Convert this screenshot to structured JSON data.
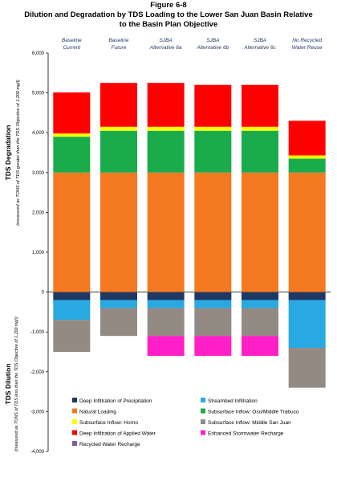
{
  "header": {
    "figure_label": "Figure 6-8",
    "title_line1": "Dilution and Degradation by TDS Loading to the Lower San Juan Basin Relative",
    "title_line2": "to the  Basin Plan Objective"
  },
  "chart_data": {
    "type": "bar",
    "stacked": true,
    "categories": [
      [
        "Baseline",
        "Current"
      ],
      [
        "Baseline",
        "Future"
      ],
      [
        "SJBA",
        "Alternative 6a"
      ],
      [
        "SJBA",
        "Alternative 6b"
      ],
      [
        "SJBA",
        "Alternative 6c"
      ],
      [
        "No Recycled",
        "Water Reuse"
      ]
    ],
    "ylim": [
      -4000,
      6000
    ],
    "yticks": [
      -4000,
      -3000,
      -2000,
      -1000,
      0,
      1000,
      2000,
      3000,
      4000,
      5000,
      6000
    ],
    "ytick_labels": [
      "-4,000",
      "-3,000",
      "-2,000",
      "-1,000",
      "0",
      "1,000",
      "2,000",
      "3,000",
      "4,000",
      "5,000",
      "6,000"
    ],
    "ylabel_top": "TDS Degradation",
    "ylabel_top_sub": "(measured as TONS of TDS greater than the TDS Objective of 1,200 mg/l)",
    "ylabel_bottom": "TDS Dilution",
    "ylabel_bottom_sub": "(measured as TONS of TDS less than the TDS Objective of 1,200 mg/l)",
    "legend_position": "bottom",
    "series": [
      {
        "name": "Deep Infiltration of Precipitation",
        "color": "#1f3864",
        "values": [
          -200,
          -200,
          -200,
          -200,
          -200,
          -200
        ]
      },
      {
        "name": "Streambed Infiltration",
        "color": "#29a9e1",
        "values": [
          -500,
          -200,
          -200,
          -200,
          -200,
          -1200
        ]
      },
      {
        "name": "Natural Loading",
        "color": "#f47920",
        "values": [
          3000,
          3000,
          3000,
          3000,
          3000,
          3000
        ]
      },
      {
        "name": "Subsurface Inflow: Oso/Middle Trabuco",
        "color": "#1aab4b",
        "values": [
          900,
          1050,
          1050,
          1050,
          1050,
          350
        ]
      },
      {
        "name": "Subsurface Inflow: Horno",
        "color": "#ffff00",
        "values": [
          80,
          100,
          100,
          100,
          100,
          80
        ]
      },
      {
        "name": "Subsurface Inflow: Middle San Juan",
        "color": "#948a84",
        "values": [
          -800,
          -700,
          -700,
          -700,
          -700,
          -1000
        ]
      },
      {
        "name": "Deep Infiltration of Applied Water",
        "color": "#ff0000",
        "values": [
          1030,
          1100,
          1100,
          1050,
          1050,
          870
        ]
      },
      {
        "name": "Enhanced Stormwater Recharge",
        "color": "#ff1fc8",
        "values": [
          0,
          0,
          -500,
          -500,
          -500,
          0
        ]
      },
      {
        "name": "Recycled Water Recharge",
        "color": "#7f5fa0",
        "values": [
          0,
          0,
          0,
          0,
          0,
          0
        ]
      }
    ],
    "grid": false
  }
}
